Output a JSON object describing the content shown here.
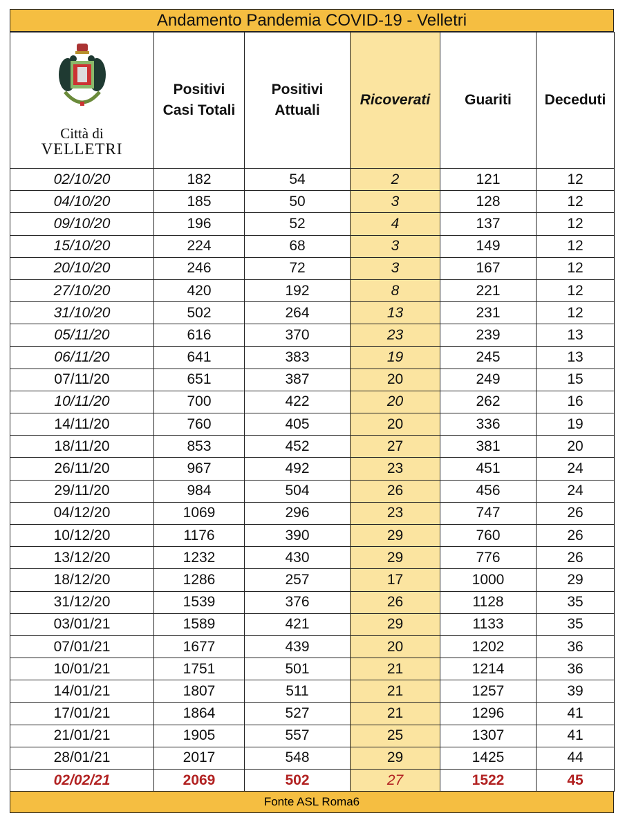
{
  "title": "Andamento Pandemia COVID-19 - Velletri",
  "logo": {
    "line1": "Città di",
    "line2": "VELLETRI",
    "icon": "city-coat-of-arms"
  },
  "headers": [
    "Positivi Casi Totali",
    "Positivi Attuali",
    "Ricoverati",
    "Guariti",
    "Deceduti"
  ],
  "colors": {
    "title_bg": "#f5be41",
    "ricoverati_bg": "#fbe4a0",
    "highlight": "#b22222"
  },
  "rows": [
    [
      "02/10/20",
      "182",
      "54",
      "2",
      "121",
      "12"
    ],
    [
      "04/10/20",
      "185",
      "50",
      "3",
      "128",
      "12"
    ],
    [
      "09/10/20",
      "196",
      "52",
      "4",
      "137",
      "12"
    ],
    [
      "15/10/20",
      "224",
      "68",
      "3",
      "149",
      "12"
    ],
    [
      "20/10/20",
      "246",
      "72",
      "3",
      "167",
      "12"
    ],
    [
      "27/10/20",
      "420",
      "192",
      "8",
      "221",
      "12"
    ],
    [
      "31/10/20",
      "502",
      "264",
      "13",
      "231",
      "12"
    ],
    [
      "05/11/20",
      "616",
      "370",
      "23",
      "239",
      "13"
    ],
    [
      "06/11/20",
      "641",
      "383",
      "19",
      "245",
      "13"
    ],
    [
      "07/11/20",
      "651",
      "387",
      "20",
      "249",
      "15"
    ],
    [
      "10/11/20",
      "700",
      "422",
      "20",
      "262",
      "16"
    ],
    [
      "14/11/20",
      "760",
      "405",
      "20",
      "336",
      "19"
    ],
    [
      "18/11/20",
      "853",
      "452",
      "27",
      "381",
      "20"
    ],
    [
      "26/11/20",
      "967",
      "492",
      "23",
      "451",
      "24"
    ],
    [
      "29/11/20",
      "984",
      "504",
      "26",
      "456",
      "24"
    ],
    [
      "04/12/20",
      "1069",
      "296",
      "23",
      "747",
      "26"
    ],
    [
      "10/12/20",
      "1176",
      "390",
      "29",
      "760",
      "26"
    ],
    [
      "13/12/20",
      "1232",
      "430",
      "29",
      "776",
      "26"
    ],
    [
      "18/12/20",
      "1286",
      "257",
      "17",
      "1000",
      "29"
    ],
    [
      "31/12/20",
      "1539",
      "376",
      "26",
      "1128",
      "35"
    ],
    [
      "03/01/21",
      "1589",
      "421",
      "29",
      "1133",
      "35"
    ],
    [
      "07/01/21",
      "1677",
      "439",
      "20",
      "1202",
      "36"
    ],
    [
      "10/01/21",
      "1751",
      "501",
      "21",
      "1214",
      "36"
    ],
    [
      "14/01/21",
      "1807",
      "511",
      "21",
      "1257",
      "39"
    ],
    [
      "17/01/21",
      "1864",
      "527",
      "21",
      "1296",
      "41"
    ],
    [
      "21/01/21",
      "1905",
      "557",
      "25",
      "1307",
      "41"
    ],
    [
      "28/01/21",
      "2017",
      "548",
      "29",
      "1425",
      "44"
    ],
    [
      "02/02/21",
      "2069",
      "502",
      "27",
      "1522",
      "45"
    ]
  ],
  "italic_rows": [
    0,
    1,
    2,
    3,
    4,
    5,
    6,
    7,
    8,
    10
  ],
  "footer": "Fonte ASL Roma6"
}
